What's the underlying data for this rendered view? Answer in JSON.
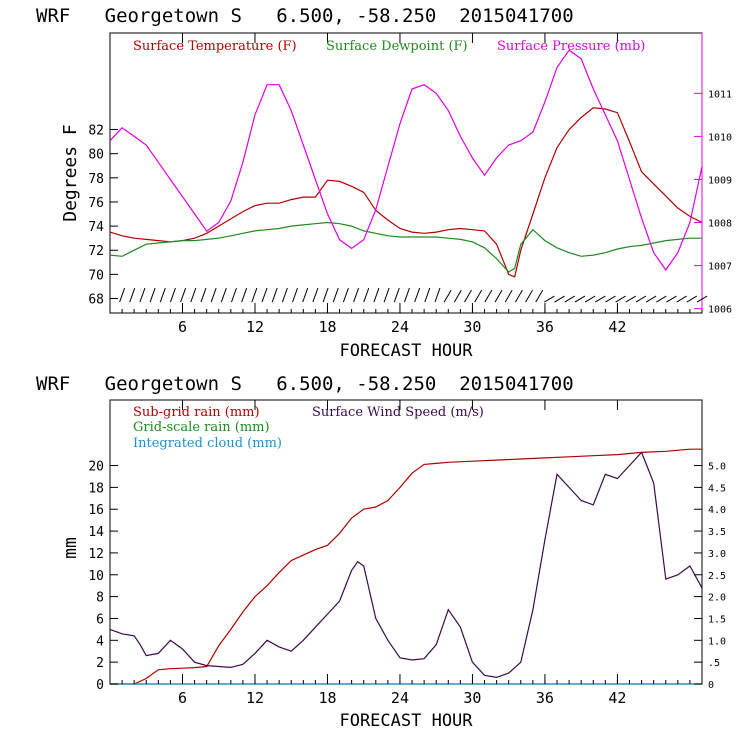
{
  "colors": {
    "temperature": "#b00000",
    "dewpoint": "#1f8a1f",
    "pressure": "#e000e0",
    "subgrid_rain": "#b00000",
    "grid_rain": "#1f8a1f",
    "cloud": "#1e90d0",
    "wind": "#3a0a4a",
    "axis": "#000000"
  },
  "chart_data": [
    {
      "type": "line",
      "title": "WRF   Georgetown S   6.500, -58.250  2015041700",
      "xlabel": "FORECAST HOUR",
      "ylabel": "Degrees F",
      "xlim": [
        0,
        49
      ],
      "ylim": [
        66.8,
        90
      ],
      "y2lim": [
        1005.9,
        1012.4
      ],
      "xticks": [
        6,
        12,
        18,
        24,
        30,
        36,
        42
      ],
      "yticks": [
        68,
        70,
        72,
        74,
        76,
        78,
        80,
        82
      ],
      "y2ticks": [
        1006,
        1007,
        1008,
        1009,
        1010,
        1011
      ],
      "legend_placement": "top",
      "series": [
        {
          "name": "Surface Temperature (F)",
          "color_key": "temperature",
          "axis": "left",
          "x": [
            0,
            1,
            2,
            3,
            4,
            5,
            6,
            7,
            8,
            9,
            10,
            11,
            12,
            13,
            14,
            15,
            16,
            17,
            18,
            19,
            20,
            21,
            22,
            23,
            24,
            25,
            26,
            27,
            28,
            29,
            30,
            31,
            32,
            33,
            33.5,
            34,
            35,
            36,
            37,
            38,
            39,
            40,
            41,
            42,
            43,
            44,
            45,
            46,
            47,
            48,
            49
          ],
          "values": [
            73.5,
            73.2,
            73.0,
            72.9,
            72.8,
            72.7,
            72.8,
            73.0,
            73.4,
            74.0,
            74.6,
            75.2,
            75.7,
            75.9,
            75.9,
            76.2,
            76.4,
            76.4,
            77.8,
            77.7,
            77.3,
            76.8,
            75.3,
            74.5,
            73.8,
            73.5,
            73.4,
            73.5,
            73.7,
            73.8,
            73.7,
            73.6,
            72.5,
            70.0,
            69.8,
            72.0,
            75.0,
            78.0,
            80.5,
            82.0,
            83.0,
            83.8,
            83.7,
            83.4,
            81.0,
            78.5,
            77.5,
            76.5,
            75.5,
            74.8,
            74.3
          ]
        },
        {
          "name": "Surface Dewpoint (F)",
          "color_key": "dewpoint",
          "axis": "left",
          "x": [
            0,
            1,
            2,
            3,
            4,
            5,
            6,
            7,
            8,
            9,
            10,
            11,
            12,
            13,
            14,
            15,
            16,
            17,
            18,
            19,
            20,
            21,
            22,
            23,
            24,
            25,
            26,
            27,
            28,
            29,
            30,
            31,
            32,
            33,
            33.5,
            34,
            35,
            36,
            37,
            38,
            39,
            40,
            41,
            42,
            43,
            44,
            45,
            46,
            47,
            48,
            49
          ],
          "values": [
            71.6,
            71.5,
            72.0,
            72.5,
            72.6,
            72.7,
            72.8,
            72.8,
            72.9,
            73.0,
            73.2,
            73.4,
            73.6,
            73.7,
            73.8,
            74.0,
            74.1,
            74.2,
            74.3,
            74.2,
            74.0,
            73.6,
            73.4,
            73.2,
            73.1,
            73.1,
            73.1,
            73.1,
            73.0,
            72.9,
            72.7,
            72.2,
            71.3,
            70.2,
            70.5,
            72.5,
            73.7,
            72.8,
            72.2,
            71.8,
            71.5,
            71.6,
            71.8,
            72.1,
            72.3,
            72.4,
            72.6,
            72.8,
            72.9,
            73.0,
            73.0
          ]
        },
        {
          "name": "Surface Pressure (mb)",
          "color_key": "pressure",
          "axis": "right",
          "x": [
            0,
            1,
            2,
            3,
            4,
            5,
            6,
            7,
            8,
            9,
            10,
            11,
            12,
            13,
            14,
            15,
            16,
            17,
            18,
            19,
            20,
            21,
            22,
            23,
            24,
            25,
            26,
            27,
            28,
            29,
            30,
            31,
            32,
            33,
            34,
            35,
            36,
            37,
            38,
            39,
            40,
            41,
            42,
            43,
            44,
            45,
            46,
            47,
            48,
            49
          ],
          "values": [
            1009.9,
            1010.2,
            1010.0,
            1009.8,
            1009.4,
            1009.0,
            1008.6,
            1008.2,
            1007.8,
            1008.0,
            1008.5,
            1009.4,
            1010.5,
            1011.2,
            1011.2,
            1010.6,
            1009.8,
            1009.0,
            1008.2,
            1007.6,
            1007.4,
            1007.6,
            1008.3,
            1009.3,
            1010.3,
            1011.1,
            1011.2,
            1011.0,
            1010.6,
            1010.0,
            1009.5,
            1009.1,
            1009.5,
            1009.8,
            1009.9,
            1010.1,
            1010.8,
            1011.6,
            1012.0,
            1011.8,
            1011.1,
            1010.5,
            1009.9,
            1009.0,
            1008.1,
            1007.3,
            1006.9,
            1007.3,
            1008.0,
            1009.3
          ]
        }
      ],
      "wind_barbs": {
        "row_value": 68.2,
        "count": 58,
        "hours_from": 1,
        "hours_to": 49
      }
    },
    {
      "type": "line",
      "title": "WRF   Georgetown S   6.500, -58.250  2015041700",
      "xlabel": "FORECAST HOUR",
      "ylabel": "mm",
      "xlim": [
        0,
        49
      ],
      "ylim": [
        0,
        26
      ],
      "y2lim": [
        0,
        6.5
      ],
      "xticks": [
        6,
        12,
        18,
        24,
        30,
        36,
        42
      ],
      "yticks": [
        0,
        2,
        4,
        6,
        8,
        10,
        12,
        14,
        16,
        18,
        20
      ],
      "y2ticks": [
        "0",
        ".5",
        "1.0",
        "1.5",
        "2.0",
        "2.5",
        "3.0",
        "3.5",
        "4.0",
        "4.5",
        "5.0"
      ],
      "legend_placement": "top",
      "series": [
        {
          "name": "Sub-grid rain (mm)",
          "color_key": "subgrid_rain",
          "axis": "left",
          "x": [
            0,
            2,
            3,
            4,
            5,
            6,
            7,
            8,
            9,
            10,
            11,
            12,
            13,
            14,
            15,
            16,
            17,
            18,
            19,
            20,
            21,
            22,
            23,
            24,
            25,
            26,
            27,
            28,
            30,
            32,
            34,
            36,
            38,
            40,
            42,
            44,
            46,
            48,
            49
          ],
          "values": [
            0,
            0,
            0.5,
            1.3,
            1.4,
            1.45,
            1.5,
            1.6,
            3.5,
            5.0,
            6.6,
            8.0,
            9.0,
            10.2,
            11.3,
            11.8,
            12.3,
            12.7,
            13.8,
            15.2,
            16.0,
            16.2,
            16.8,
            18.0,
            19.3,
            20.1,
            20.2,
            20.3,
            20.4,
            20.5,
            20.6,
            20.7,
            20.8,
            20.9,
            21.0,
            21.2,
            21.3,
            21.5,
            21.5
          ]
        },
        {
          "name": "Grid-scale rain (mm)",
          "color_key": "grid_rain",
          "axis": "left",
          "x": [
            0,
            49
          ],
          "values": [
            0,
            0
          ]
        },
        {
          "name": "Integrated cloud (mm)",
          "color_key": "cloud",
          "axis": "left",
          "x": [
            0,
            49
          ],
          "values": [
            0,
            0
          ]
        },
        {
          "name": "Surface Wind Speed (m/s)",
          "color_key": "wind",
          "axis": "right",
          "x": [
            0,
            1,
            2,
            2.5,
            3,
            4,
            5,
            6,
            7,
            8,
            9,
            10,
            11,
            12,
            13,
            14,
            15,
            16,
            17,
            18,
            19,
            20,
            20.5,
            21,
            22,
            23,
            24,
            25,
            26,
            27,
            28,
            29,
            30,
            31,
            32,
            33,
            34,
            35,
            36,
            37,
            38,
            39,
            40,
            41,
            42,
            43,
            44,
            45,
            46,
            47,
            48,
            49
          ],
          "values": [
            1.25,
            1.15,
            1.1,
            0.9,
            0.65,
            0.7,
            1.0,
            0.8,
            0.5,
            0.42,
            0.4,
            0.38,
            0.45,
            0.7,
            1.0,
            0.85,
            0.75,
            1.0,
            1.3,
            1.6,
            1.9,
            2.6,
            2.8,
            2.7,
            1.5,
            1.0,
            0.6,
            0.55,
            0.58,
            0.9,
            1.7,
            1.3,
            0.5,
            0.2,
            0.15,
            0.25,
            0.5,
            1.7,
            3.3,
            4.8,
            4.5,
            4.2,
            4.1,
            4.8,
            4.7,
            5.0,
            5.3,
            4.6,
            2.4,
            2.5,
            2.7,
            2.2
          ]
        }
      ]
    }
  ]
}
